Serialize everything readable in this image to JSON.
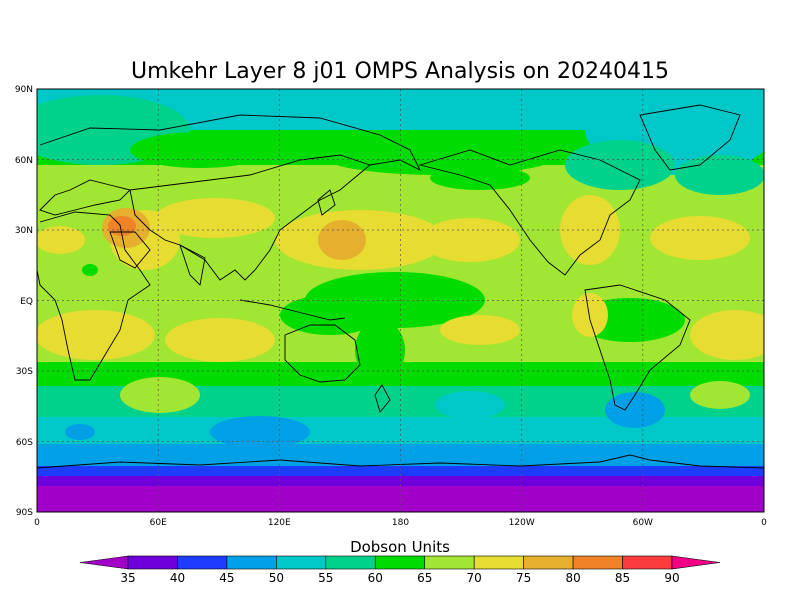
{
  "title": "Umkehr Layer 8 j01 OMPS Analysis on 20240415",
  "colorbar": {
    "title": "Dobson Units",
    "levels": [
      "35",
      "40",
      "45",
      "50",
      "55",
      "60",
      "65",
      "70",
      "75",
      "80",
      "85",
      "90"
    ],
    "colors": [
      "#a000c8",
      "#6e00dc",
      "#1e3cff",
      "#00a0e6",
      "#00c8c8",
      "#00d28c",
      "#00dc00",
      "#a0e632",
      "#e6dc32",
      "#e6af2d",
      "#f08228",
      "#fa3c3c",
      "#f00082"
    ]
  },
  "map": {
    "lat_ticks": [
      "90N",
      "60N",
      "30N",
      "EQ",
      "30S",
      "60S",
      "90S"
    ],
    "lon_ticks": [
      "0",
      "60E",
      "120E",
      "180",
      "120W",
      "60W",
      "0"
    ],
    "grid": "dotted",
    "projection": "equirectangular"
  }
}
